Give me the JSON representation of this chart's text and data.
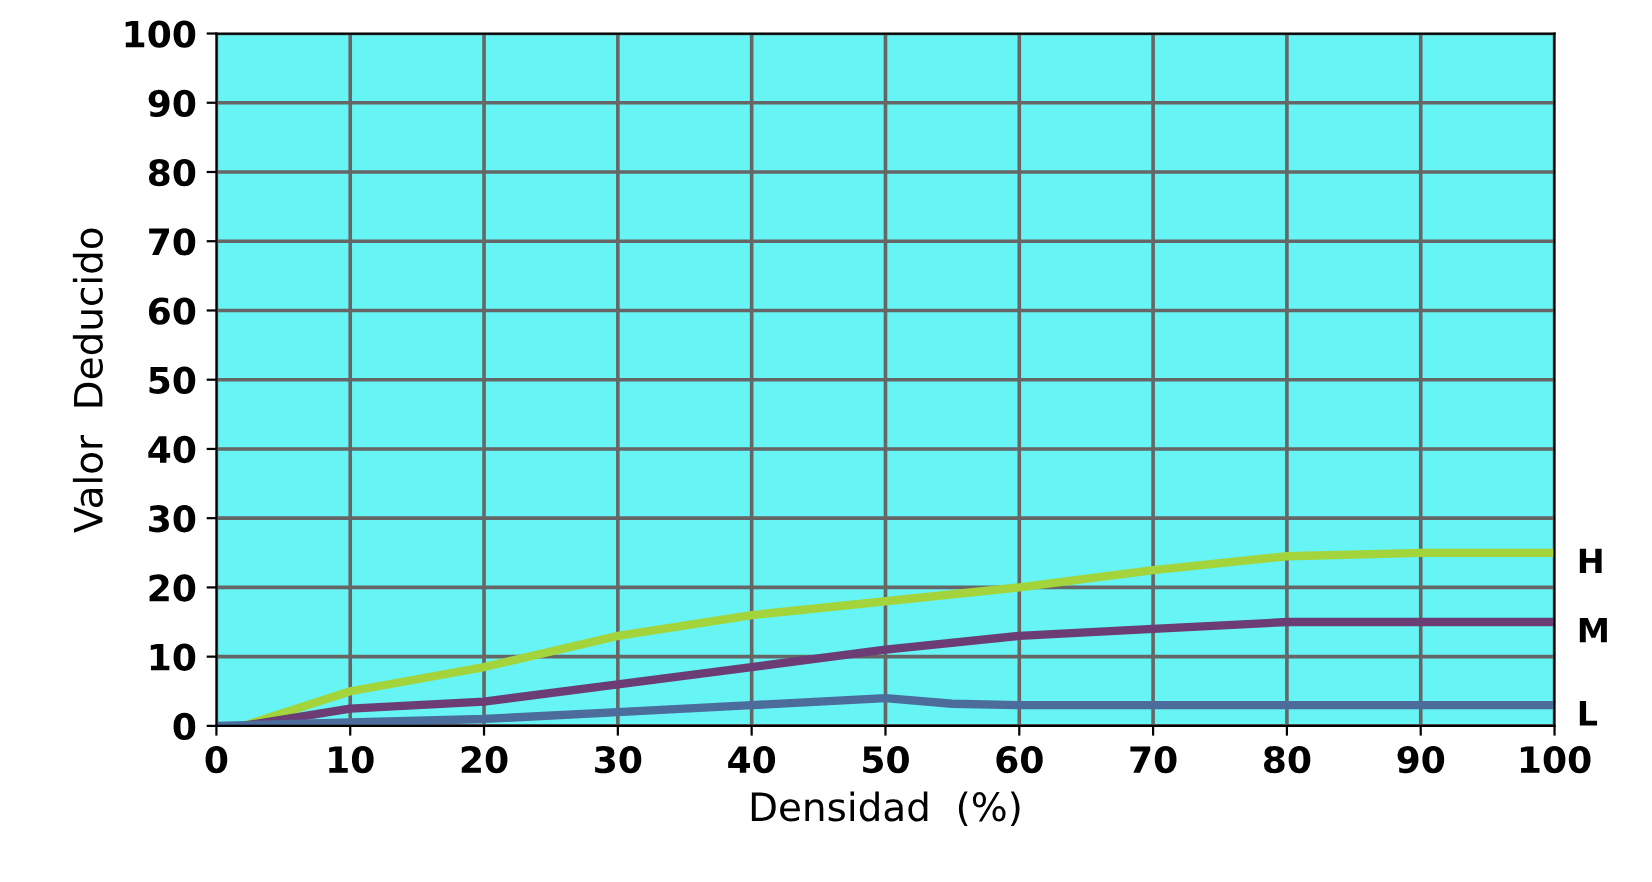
{
  "chart_data": {
    "type": "line",
    "xlabel": "Densidad  (%)",
    "ylabel": "Valor  Deducido",
    "xlim": [
      0,
      100
    ],
    "ylim": [
      0,
      100
    ],
    "xticks": [
      0,
      10,
      20,
      30,
      40,
      50,
      60,
      70,
      80,
      90,
      100
    ],
    "yticks": [
      0,
      10,
      20,
      30,
      40,
      50,
      60,
      70,
      80,
      90,
      100
    ],
    "grid": true,
    "legend": false,
    "series": [
      {
        "name": "H",
        "color": "#a4d43c",
        "x": [
          2,
          10,
          20,
          30,
          40,
          50,
          60,
          70,
          80,
          90,
          100
        ],
        "values": [
          0,
          5,
          8.5,
          13,
          16,
          18,
          20,
          22.5,
          24.5,
          25,
          25
        ]
      },
      {
        "name": "M",
        "color": "#6b3d74",
        "x": [
          2,
          10,
          20,
          30,
          40,
          50,
          60,
          70,
          80,
          90,
          100
        ],
        "values": [
          0,
          2.5,
          3.5,
          6,
          8.5,
          11,
          13,
          14,
          15,
          15,
          15
        ]
      },
      {
        "name": "L",
        "color": "#4c6c9c",
        "x": [
          0,
          10,
          20,
          30,
          40,
          50,
          55,
          60,
          70,
          80,
          90,
          100
        ],
        "values": [
          0,
          0.5,
          1,
          2,
          3,
          4,
          3.2,
          3,
          3,
          3,
          3,
          3
        ]
      }
    ]
  }
}
